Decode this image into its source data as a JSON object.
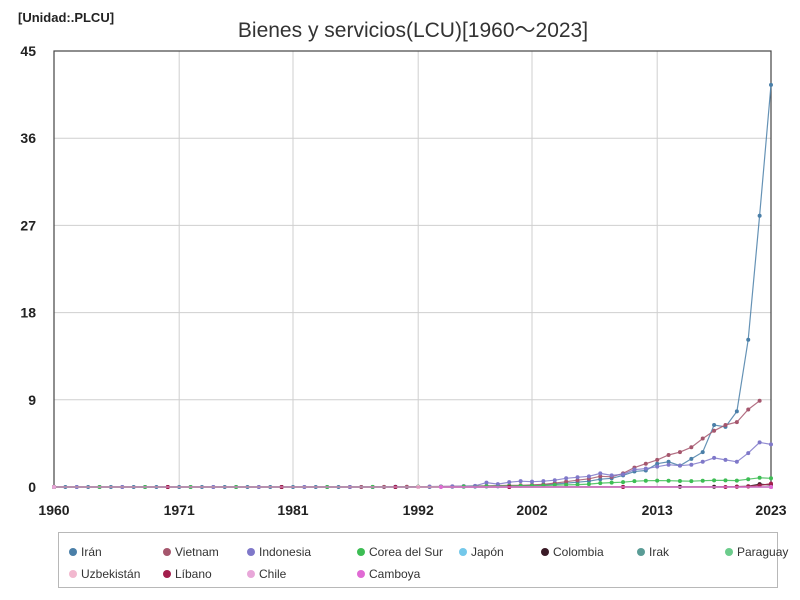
{
  "unit_label": "[Unidad:.PLCU]",
  "chart_data": {
    "type": "line",
    "title": "Bienes y servicios(LCU)[1960～2023]",
    "xlabel": "",
    "ylabel": "",
    "xlim": [
      1960,
      2023
    ],
    "ylim": [
      0,
      45
    ],
    "x_ticks": [
      1960,
      1971,
      1981,
      1992,
      2002,
      2013,
      2023
    ],
    "y_ticks": [
      0,
      9,
      18,
      27,
      36,
      45
    ],
    "grid": true,
    "legend_position": "bottom",
    "series": [
      {
        "name": "Irán",
        "color": "#4a7fa8",
        "x": [
          1960,
          1961,
          1962,
          1963,
          1964,
          1965,
          1966,
          1967,
          1968,
          1969,
          1970,
          1971,
          1972,
          1973,
          1974,
          1975,
          1976,
          1977,
          1978,
          1979,
          1980,
          1981,
          1982,
          1983,
          1984,
          1985,
          1986,
          1987,
          1988,
          1989,
          1990,
          1991,
          1992,
          1993,
          1994,
          1995,
          1996,
          1997,
          1998,
          1999,
          2000,
          2001,
          2002,
          2003,
          2004,
          2005,
          2006,
          2007,
          2008,
          2009,
          2010,
          2011,
          2012,
          2013,
          2014,
          2015,
          2016,
          2017,
          2018,
          2019,
          2020,
          2021,
          2022,
          2023
        ],
        "values": [
          0,
          0,
          0,
          0,
          0,
          0,
          0,
          0,
          0,
          0,
          0,
          0,
          0,
          0,
          0,
          0,
          0,
          0,
          0,
          0,
          0,
          0,
          0,
          0,
          0,
          0,
          0,
          0,
          0,
          0,
          0,
          0,
          0,
          0,
          0.01,
          0.02,
          0.03,
          0.04,
          0.05,
          0.07,
          0.1,
          0.12,
          0.18,
          0.22,
          0.3,
          0.4,
          0.5,
          0.6,
          0.8,
          0.9,
          1.2,
          1.6,
          1.7,
          2.4,
          2.6,
          2.2,
          2.9,
          3.6,
          6.4,
          6.2,
          7.8,
          15.2,
          28.0,
          41.5
        ]
      },
      {
        "name": "Vietnam",
        "color": "#a5566d",
        "x": [
          1986,
          1987,
          1988,
          1989,
          1990,
          1991,
          1992,
          1993,
          1994,
          1995,
          1996,
          1997,
          1998,
          1999,
          2000,
          2001,
          2002,
          2003,
          2004,
          2005,
          2006,
          2007,
          2008,
          2009,
          2010,
          2011,
          2012,
          2013,
          2014,
          2015,
          2016,
          2017,
          2018,
          2019,
          2020,
          2021,
          2022
        ],
        "values": [
          0,
          0,
          0,
          0.01,
          0.01,
          0.02,
          0.03,
          0.04,
          0.05,
          0.07,
          0.08,
          0.1,
          0.12,
          0.14,
          0.16,
          0.18,
          0.22,
          0.28,
          0.4,
          0.55,
          0.7,
          0.85,
          1.1,
          1.05,
          1.4,
          2.0,
          2.4,
          2.8,
          3.3,
          3.6,
          4.1,
          5.0,
          5.8,
          6.4,
          6.7,
          8.0,
          8.9
        ]
      },
      {
        "name": "Indonesia",
        "color": "#7f78c9",
        "x": [
          1960,
          1962,
          1964,
          1966,
          1968,
          1970,
          1972,
          1974,
          1976,
          1978,
          1980,
          1982,
          1984,
          1986,
          1988,
          1990,
          1992,
          1993,
          1994,
          1995,
          1996,
          1997,
          1998,
          1999,
          2000,
          2001,
          2002,
          2003,
          2004,
          2005,
          2006,
          2007,
          2008,
          2009,
          2010,
          2011,
          2012,
          2013,
          2014,
          2015,
          2016,
          2017,
          2018,
          2019,
          2020,
          2021,
          2022,
          2023
        ],
        "values": [
          0,
          0,
          0,
          0,
          0,
          0,
          0,
          0,
          0,
          0,
          0,
          0,
          0,
          0,
          0,
          0.02,
          0.03,
          0.04,
          0.05,
          0.07,
          0.09,
          0.12,
          0.45,
          0.3,
          0.5,
          0.6,
          0.55,
          0.6,
          0.7,
          0.9,
          1.0,
          1.1,
          1.4,
          1.2,
          1.3,
          1.8,
          1.9,
          2.1,
          2.3,
          2.2,
          2.3,
          2.6,
          3.0,
          2.8,
          2.6,
          3.5,
          4.6,
          4.4
        ]
      },
      {
        "name": "Corea del Sur",
        "color": "#3dbd54",
        "x": [
          1960,
          1964,
          1968,
          1972,
          1976,
          1980,
          1984,
          1988,
          1992,
          1994,
          1996,
          1998,
          2000,
          2001,
          2002,
          2003,
          2004,
          2005,
          2006,
          2007,
          2008,
          2009,
          2010,
          2011,
          2012,
          2013,
          2014,
          2015,
          2016,
          2017,
          2018,
          2019,
          2020,
          2021,
          2022,
          2023
        ],
        "values": [
          0,
          0,
          0,
          0,
          0,
          0,
          0,
          0.01,
          0.02,
          0.03,
          0.05,
          0.08,
          0.1,
          0.12,
          0.13,
          0.15,
          0.2,
          0.22,
          0.25,
          0.3,
          0.4,
          0.45,
          0.5,
          0.6,
          0.65,
          0.66,
          0.65,
          0.62,
          0.6,
          0.65,
          0.68,
          0.68,
          0.66,
          0.8,
          0.95,
          0.9
        ]
      },
      {
        "name": "Japón",
        "color": "#74c8ea",
        "x": [
          1960,
          2023
        ],
        "values": [
          0,
          0
        ]
      },
      {
        "name": "Colombia",
        "color": "#3a1a26",
        "x": [
          1960,
          1970,
          1980,
          1990,
          2000,
          2010,
          2015,
          2018,
          2020,
          2021,
          2022,
          2023
        ],
        "values": [
          0,
          0,
          0,
          0,
          0,
          0.01,
          0.02,
          0.03,
          0.04,
          0.08,
          0.3,
          0.2
        ]
      },
      {
        "name": "Irak",
        "color": "#5a9c96",
        "x": [
          1960,
          2023
        ],
        "values": [
          0,
          0
        ]
      },
      {
        "name": "Paraguay",
        "color": "#6ccc8c",
        "x": [
          1960,
          2023
        ],
        "values": [
          0,
          0
        ]
      },
      {
        "name": "Uzbekistán",
        "color": "#f2b8cf",
        "x": [
          1992,
          2023
        ],
        "values": [
          0,
          0
        ]
      },
      {
        "name": "Líbano",
        "color": "#a31e4c",
        "x": [
          1960,
          1970,
          1980,
          1990,
          2000,
          2010,
          2019,
          2020,
          2021,
          2022,
          2023
        ],
        "values": [
          0,
          0,
          0,
          0,
          0,
          0,
          0,
          0.02,
          0.05,
          0.15,
          0.35
        ]
      },
      {
        "name": "Chile",
        "color": "#e8a7d9",
        "x": [
          1960,
          2023
        ],
        "values": [
          0,
          0
        ]
      },
      {
        "name": "Camboya",
        "color": "#e06ad4",
        "x": [
          1994,
          2023
        ],
        "values": [
          0,
          0
        ]
      }
    ]
  }
}
